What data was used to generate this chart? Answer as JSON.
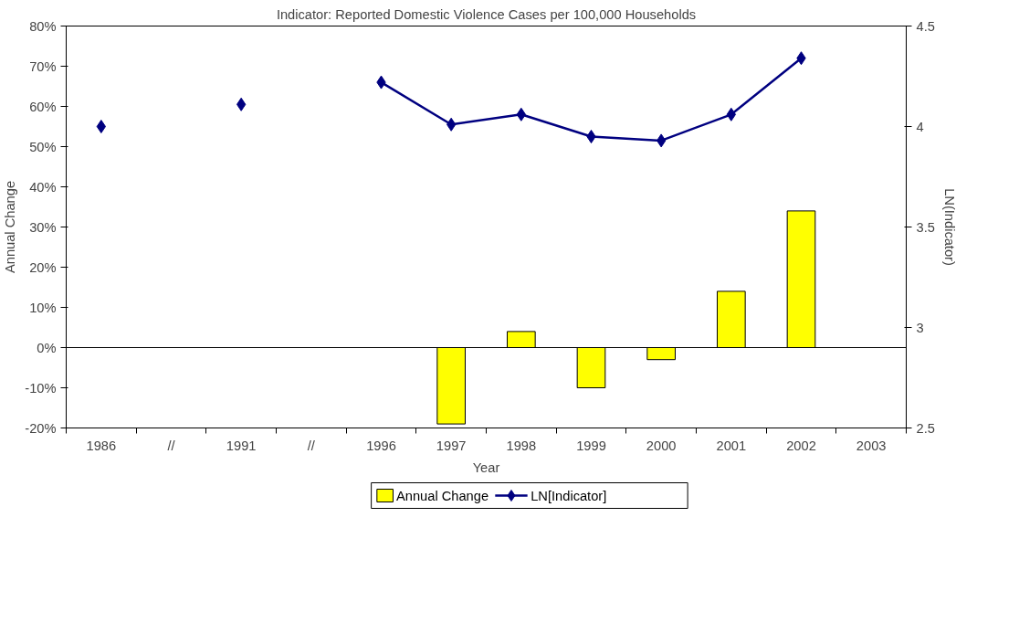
{
  "chart_data": {
    "type": "bar",
    "title": "Indicator: Reported Domestic Violence Cases per 100,000 Households",
    "xlabel": "Year",
    "ylabel": "Annual Change",
    "y2label": "LN(Indicator)",
    "categories": [
      "1986",
      "//",
      "1991",
      "//",
      "1996",
      "1997",
      "1998",
      "1999",
      "2000",
      "2001",
      "2002",
      "2003"
    ],
    "series": [
      {
        "name": "Annual Change",
        "color": "#ffff00",
        "values": [
          null,
          null,
          null,
          null,
          null,
          -19,
          4,
          -10,
          -3,
          14,
          34,
          null
        ]
      },
      {
        "name": "LN[Indicator]",
        "type": "line",
        "axis": "y2",
        "color": "#000080",
        "marker": "diamond",
        "values": [
          4.0,
          null,
          4.11,
          null,
          4.22,
          4.01,
          4.06,
          3.95,
          3.93,
          4.06,
          4.34,
          null
        ]
      }
    ],
    "ylim": [
      -20,
      80
    ],
    "yticks": [
      {
        "value": -20,
        "label": "-20%"
      },
      {
        "value": -10,
        "label": "-10%"
      },
      {
        "value": 0,
        "label": "0%"
      },
      {
        "value": 10,
        "label": "10%"
      },
      {
        "value": 20,
        "label": "20%"
      },
      {
        "value": 30,
        "label": "30%"
      },
      {
        "value": 40,
        "label": "40%"
      },
      {
        "value": 50,
        "label": "50%"
      },
      {
        "value": 60,
        "label": "60%"
      },
      {
        "value": 70,
        "label": "70%"
      },
      {
        "value": 80,
        "label": "80%"
      }
    ],
    "y2lim": [
      2.5,
      4.5
    ],
    "y2ticks": [
      2.5,
      3,
      3.5,
      4,
      4.5
    ],
    "ref_lines": [
      {
        "axis": "y",
        "value": 0
      }
    ],
    "legend": "bottom",
    "grid": false
  }
}
